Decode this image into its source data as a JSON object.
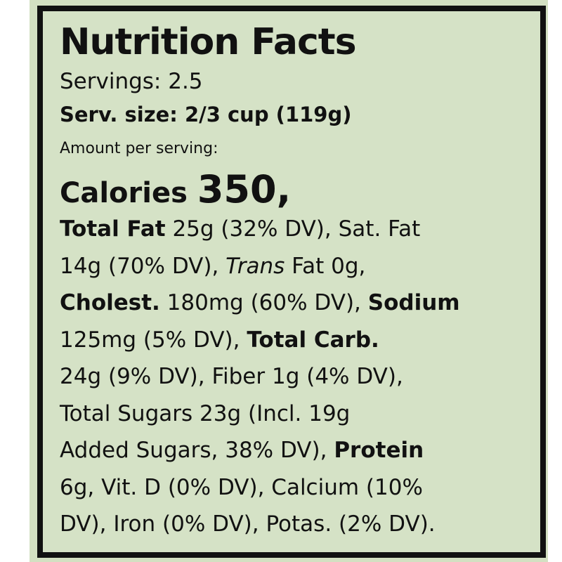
{
  "label": {
    "title": "Nutrition Facts",
    "servings": "Servings: 2.5",
    "serving_size": "Serv. size: 2/3 cup (119g)",
    "amount_per_serving": "Amount per serving:",
    "calories_label": "Calories",
    "calories_value": "350,",
    "lines": [
      [
        {
          "t": "Total Fat",
          "s": "b"
        },
        {
          "t": " 25g (32% DV), Sat. Fat"
        }
      ],
      [
        {
          "t": "14g (70% DV), "
        },
        {
          "t": "Trans",
          "s": "i"
        },
        {
          "t": " Fat 0g,"
        }
      ],
      [
        {
          "t": "Cholest.",
          "s": "b"
        },
        {
          "t": " 180mg (60% DV), "
        },
        {
          "t": "Sodium",
          "s": "b"
        }
      ],
      [
        {
          "t": "125mg (5% DV), "
        },
        {
          "t": "Total Carb.",
          "s": "b"
        }
      ],
      [
        {
          "t": "24g (9% DV), Fiber 1g (4% DV),"
        }
      ],
      [
        {
          "t": "Total Sugars 23g (Incl. 19g"
        }
      ],
      [
        {
          "t": "Added Sugars, 38% DV), "
        },
        {
          "t": "Protein",
          "s": "b"
        }
      ],
      [
        {
          "t": "6g, Vit. D (0% DV), Calcium (10%"
        }
      ],
      [
        {
          "t": "DV), Iron (0% DV), Potas. (2% DV)."
        }
      ]
    ]
  },
  "colors": {
    "background": "#d5e2c6",
    "border": "#111111",
    "text": "#111111"
  }
}
